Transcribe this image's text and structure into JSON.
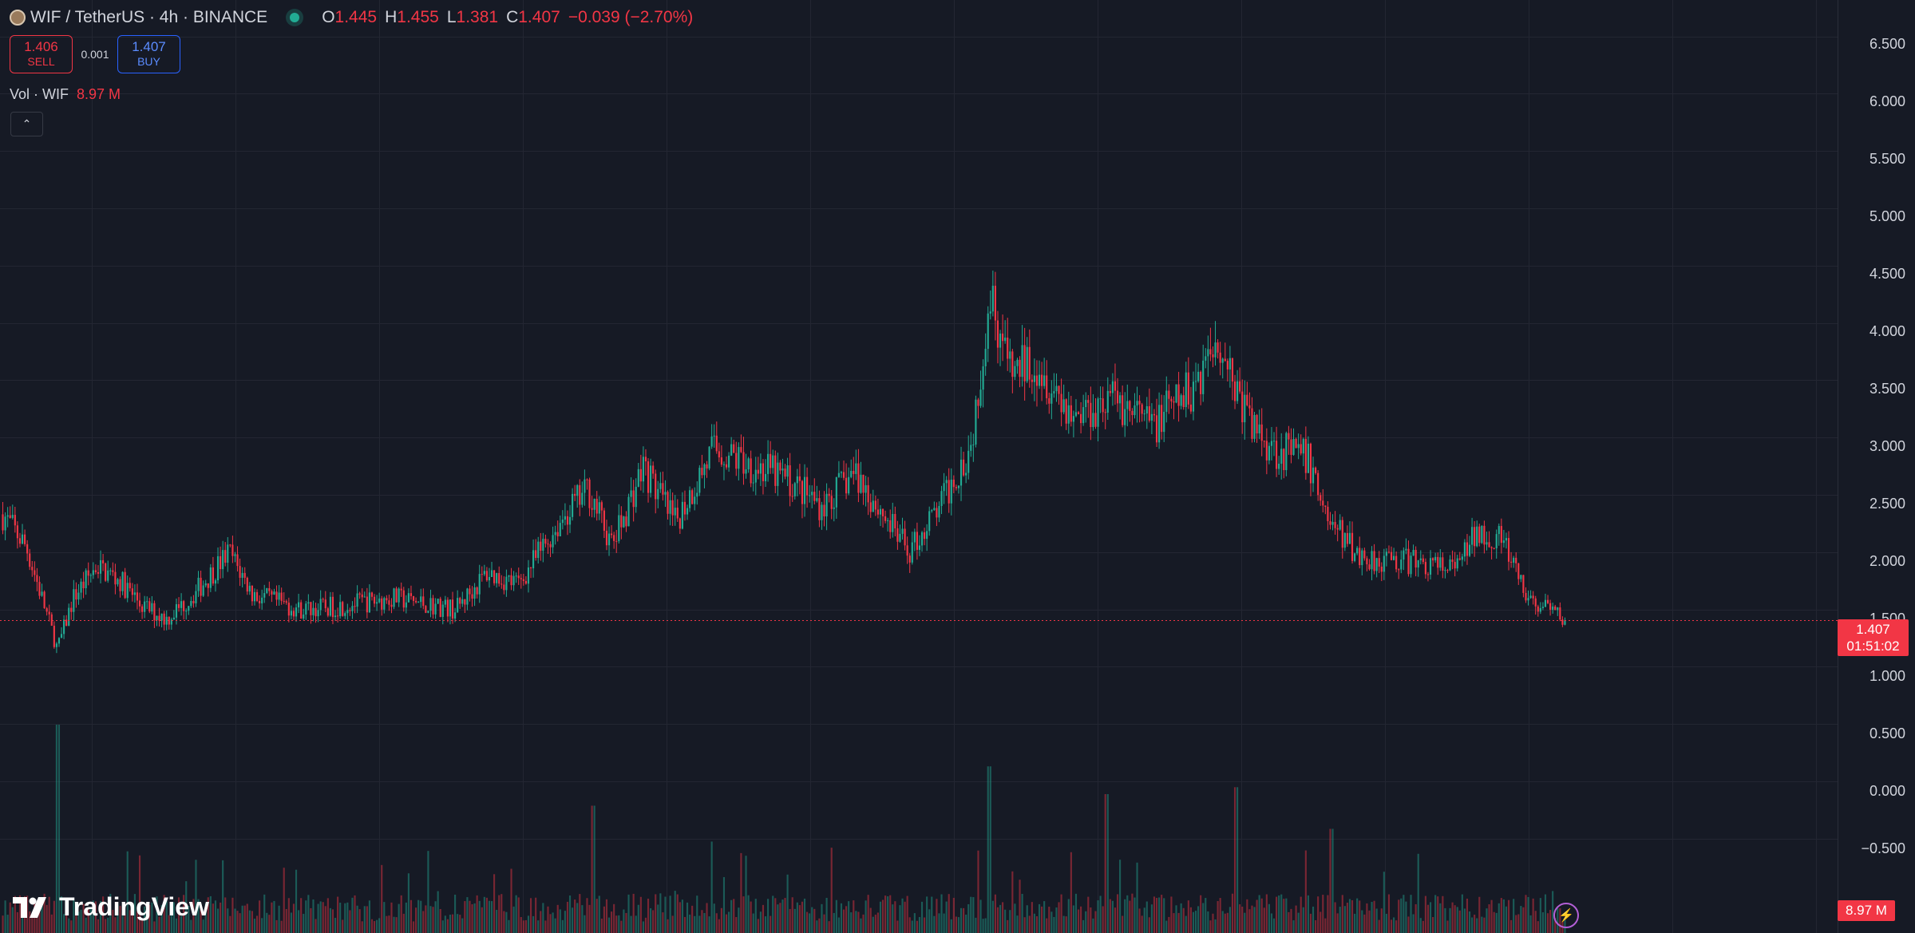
{
  "legend": {
    "symbol": "WIF / TetherUS · 4h · BINANCE",
    "ohlc": [
      {
        "key": "O",
        "value": "1.445"
      },
      {
        "key": "H",
        "value": "1.455"
      },
      {
        "key": "L",
        "value": "1.381"
      },
      {
        "key": "C",
        "value": "1.407"
      }
    ],
    "change": "−0.039 (−2.70%)"
  },
  "trade": {
    "sell_price": "1.406",
    "sell_label": "SELL",
    "spread": "0.001",
    "buy_price": "1.407",
    "buy_label": "BUY"
  },
  "volume": {
    "label": "Vol · WIF",
    "value": "8.97 M"
  },
  "price_axis": {
    "ticks": [
      "6.500",
      "6.000",
      "5.500",
      "5.000",
      "4.500",
      "4.000",
      "3.500",
      "3.000",
      "2.500",
      "2.000",
      "1.500",
      "1.000",
      "0.500",
      "0.000",
      "−0.500"
    ]
  },
  "last_price": {
    "price": "1.407",
    "countdown": "01:51:02"
  },
  "volume_tag": "8.97 M",
  "brand": "TradingView",
  "colors": {
    "background": "#161a25",
    "up": "#22ab94",
    "down": "#f23645",
    "accent": "#2962ff"
  },
  "icons": {
    "collapse": "chevron-up-icon",
    "bolt": "lightning-icon"
  },
  "chart_data": {
    "type": "candlestick",
    "symbol": "WIF/USDT",
    "interval": "4h",
    "ylim": [
      -0.75,
      6.75
    ],
    "path_anchors": [
      [
        0,
        2.33
      ],
      [
        0.015,
        2.05
      ],
      [
        0.025,
        1.6
      ],
      [
        0.035,
        1.15
      ],
      [
        0.045,
        1.6
      ],
      [
        0.06,
        1.88
      ],
      [
        0.075,
        1.75
      ],
      [
        0.09,
        1.52
      ],
      [
        0.105,
        1.42
      ],
      [
        0.12,
        1.6
      ],
      [
        0.145,
        2.0
      ],
      [
        0.16,
        1.63
      ],
      [
        0.19,
        1.5
      ],
      [
        0.21,
        1.52
      ],
      [
        0.25,
        1.6
      ],
      [
        0.29,
        1.5
      ],
      [
        0.31,
        1.82
      ],
      [
        0.33,
        1.72
      ],
      [
        0.36,
        2.33
      ],
      [
        0.375,
        2.55
      ],
      [
        0.39,
        2.05
      ],
      [
        0.41,
        2.75
      ],
      [
        0.43,
        2.25
      ],
      [
        0.455,
        2.9
      ],
      [
        0.5,
        2.65
      ],
      [
        0.525,
        2.4
      ],
      [
        0.545,
        2.7
      ],
      [
        0.58,
        2.0
      ],
      [
        0.6,
        2.4
      ],
      [
        0.62,
        2.95
      ],
      [
        0.632,
        4.3
      ],
      [
        0.645,
        3.55
      ],
      [
        0.66,
        3.7
      ],
      [
        0.685,
        3.2
      ],
      [
        0.71,
        3.35
      ],
      [
        0.735,
        3.1
      ],
      [
        0.76,
        3.4
      ],
      [
        0.778,
        3.9
      ],
      [
        0.79,
        3.4
      ],
      [
        0.8,
        3.1
      ],
      [
        0.815,
        2.9
      ],
      [
        0.835,
        2.82
      ],
      [
        0.85,
        2.25
      ],
      [
        0.87,
        1.95
      ],
      [
        0.9,
        1.92
      ],
      [
        0.93,
        1.85
      ],
      [
        0.945,
        2.2
      ],
      [
        0.96,
        2.1
      ],
      [
        0.975,
        1.6
      ],
      [
        1.0,
        1.407
      ]
    ],
    "volume_spikes": [
      [
        0.035,
        0.9
      ],
      [
        0.378,
        0.55
      ],
      [
        0.632,
        0.72
      ],
      [
        0.706,
        0.6
      ],
      [
        0.79,
        0.63
      ],
      [
        0.85,
        0.45
      ]
    ]
  }
}
